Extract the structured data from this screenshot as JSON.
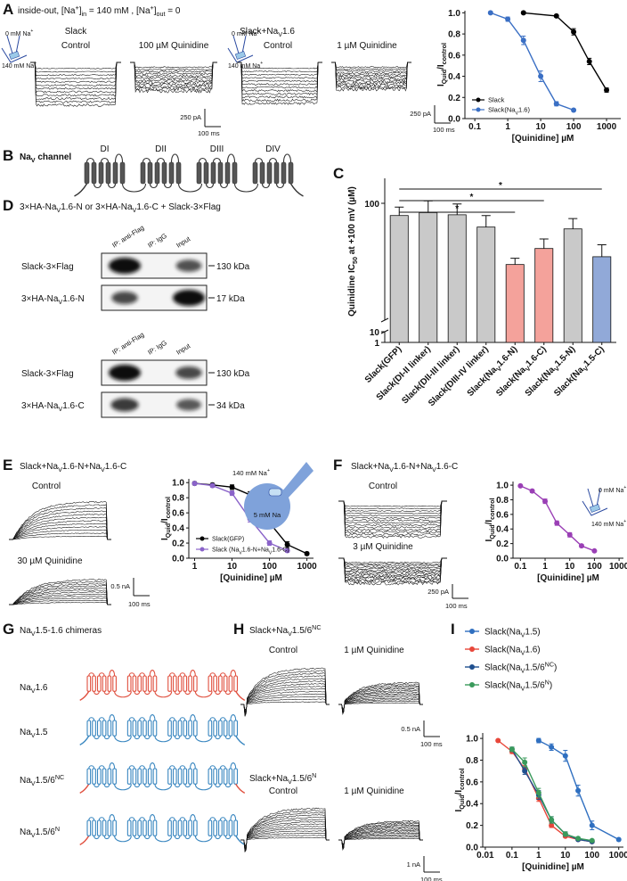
{
  "panels": {
    "a": {
      "label": "A",
      "title": "inside-out, [Na+]in = 140 mM , [Na+]out = 0",
      "slack": {
        "name": "Slack",
        "control": "Control",
        "drug": "100 µM Quinidine",
        "bath": "0 mM Na+",
        "pipette": "140 mM Na+",
        "scale_y": "250 pA",
        "scale_x": "100 ms"
      },
      "slack_nav": {
        "name": "Slack+NaV1.6",
        "control": "Control",
        "drug": "1 µM Quinidine",
        "bath": "0 mM Na+",
        "pipette": "140 mM Na+",
        "scale_y": "250 pA",
        "scale_x": "100 ms"
      }
    },
    "b": {
      "label": "B",
      "title": "NaV channel",
      "domains": [
        "DI",
        "DII",
        "DIII",
        "DIV"
      ]
    },
    "c": {
      "label": "C"
    },
    "d": {
      "label": "D",
      "title": "3×HA-NaV1.6-N or 3×HA-NaV1.6-C + Slack-3×Flag",
      "blots": [
        {
          "lanes": [
            "IP: anti-Flag",
            "IP: IgG",
            "Input"
          ],
          "rows": [
            {
              "name": "Slack-3×Flag",
              "size": "130 kDa"
            },
            {
              "name": "3×HA-NaV1.6-N",
              "size": "17 kDa"
            }
          ]
        },
        {
          "lanes": [
            "IP: anti-Flag",
            "IP: IgG",
            "Input"
          ],
          "rows": [
            {
              "name": "Slack-3×Flag",
              "size": "130 kDa"
            },
            {
              "name": "3×HA-NaV1.6-C",
              "size": "34 kDa"
            }
          ]
        }
      ]
    },
    "e": {
      "label": "E",
      "title": "Slack+NaV1.6-N+NaV1.6-C",
      "control": "Control",
      "drug": "30 µM Quinidine",
      "scale_y": "0.5 nA",
      "scale_x": "100 ms",
      "pipette": "140 mM Na+",
      "cell": "5 mM Na"
    },
    "f": {
      "label": "F",
      "title": "Slack+NaV1.6-N+NaV1.6-C",
      "control": "Control",
      "drug": "3 µM Quinidine",
      "scale_y": "250 pA",
      "scale_x": "100 ms",
      "bath": "0 mM Na+",
      "pipette": "140 mM Na+"
    },
    "g": {
      "label": "G",
      "title": "NaV1.5-1.6 chimeras",
      "rows": [
        "NaV1.6",
        "NaV1.5",
        "NaV1.5/6NC",
        "NaV1.5/6N"
      ]
    },
    "h": {
      "label": "H",
      "recordings": [
        {
          "title": "Slack+NaV1.5/6NC",
          "control": "Control",
          "drug": "1 µM Quinidine",
          "scale_y": "0.5 nA",
          "scale_x": "100 ms"
        },
        {
          "title": "Slack+NaV1.5/6N",
          "control": "Control",
          "drug": "1 µM Quinidine",
          "scale_y": "1 nA",
          "scale_x": "100 ms"
        }
      ]
    },
    "i": {
      "label": "I"
    }
  },
  "chart_data": [
    {
      "type": "line",
      "xlabel": "[Quinidine] µM",
      "ylabel": "IQuid/Icontrol",
      "xlog": true,
      "xlim": [
        0.05,
        2700
      ],
      "xticks": [
        0.1,
        1,
        10,
        100,
        1000
      ],
      "ylim": [
        0,
        1.02
      ],
      "yticks": [
        {
          "value": 0,
          "label": "0.0"
        },
        0.2,
        0.4,
        0.6,
        0.8,
        {
          "value": 1,
          "label": "1.0"
        }
      ],
      "legend": "lower left",
      "series": [
        {
          "name": "Slack",
          "color": "#000000",
          "x": [
            3,
            30,
            100,
            300,
            1000
          ],
          "values": [
            1.0,
            0.97,
            0.82,
            0.54,
            0.27
          ],
          "errors": [
            0.01,
            0.01,
            0.03,
            0.03,
            0.02
          ]
        },
        {
          "name": "Slack(NaV1.6)",
          "color": "#3a6fc4",
          "x": [
            0.3,
            1,
            3,
            10,
            30,
            100
          ],
          "values": [
            1.0,
            0.94,
            0.74,
            0.4,
            0.14,
            0.08
          ],
          "errors": [
            0.01,
            0.02,
            0.04,
            0.05,
            0.02,
            0.01
          ]
        }
      ]
    },
    {
      "type": "bar",
      "ylabel": "Quinidine IC50 at +100 mV (µM)",
      "ylog": true,
      "ylim": [
        1,
        150
      ],
      "yticks": [
        1,
        10,
        100
      ],
      "axis_break": [
        10,
        15
      ],
      "categories": [
        "Slack(GFP)",
        "Slack(DI-II linker)",
        "Slack(DII-III linker)",
        "Slack(DIII-IV linker)",
        "Slack(NaV1.6-N)",
        "Slack(NaV1.6-C)",
        "Slack(NaV1.5-N)",
        "Slack(NaV1.5-C)"
      ],
      "values": [
        82,
        86,
        83,
        68,
        37,
        48,
        66,
        42
      ],
      "errors": [
        12,
        18,
        16,
        14,
        4,
        8,
        12,
        9
      ],
      "colors": [
        "#c9c9c9",
        "#c9c9c9",
        "#c9c9c9",
        "#c9c9c9",
        "#f4a29b",
        "#f4a29b",
        "#c9c9c9",
        "#91a9d8"
      ],
      "significance": [
        {
          "from": 0,
          "to": 4,
          "label": "*"
        },
        {
          "from": 0,
          "to": 5,
          "label": "*"
        },
        {
          "from": 0,
          "to": 7,
          "label": "*"
        }
      ]
    },
    {
      "type": "line",
      "xlabel": "[Quinidine] µM",
      "ylabel": "IQuid/Icontrol",
      "xlog": true,
      "xlim": [
        0.7,
        1500
      ],
      "xticks": [
        1,
        10,
        100,
        1000
      ],
      "ylim": [
        0,
        1.05
      ],
      "yticks": [
        {
          "value": 0,
          "label": "0.0"
        },
        0.2,
        0.4,
        0.6,
        0.8,
        {
          "value": 1,
          "label": "1.0"
        }
      ],
      "legend": "lower left",
      "series": [
        {
          "name": "Slack(GFP)",
          "color": "#000000",
          "x": [
            1,
            3,
            10,
            30,
            100,
            300,
            1000
          ],
          "values": [
            0.99,
            0.97,
            0.94,
            0.84,
            0.47,
            0.18,
            0.06
          ],
          "errors": [
            0.02,
            0.02,
            0.03,
            0.04,
            0.05,
            0.04,
            0.02
          ]
        },
        {
          "name": "Slack (NaV1.6-N+NaV1.6-C)",
          "color": "#8a63c9",
          "x": [
            1,
            3,
            10,
            30,
            100,
            300
          ],
          "values": [
            0.99,
            0.96,
            0.86,
            0.52,
            0.2,
            0.1
          ],
          "errors": [
            0.01,
            0.02,
            0.03,
            0.04,
            0.03,
            0.02
          ]
        }
      ]
    },
    {
      "type": "line",
      "xlabel": "[Quinidine] µM",
      "ylabel": "IQuid/Icontrol",
      "xlog": true,
      "xlim": [
        0.05,
        1500
      ],
      "xticks": [
        0.1,
        1,
        10,
        100,
        1000
      ],
      "ylim": [
        0,
        1.05
      ],
      "yticks": [
        {
          "value": 0,
          "label": "0.0"
        },
        0.2,
        0.4,
        0.6,
        0.8,
        {
          "value": 1,
          "label": "1.0"
        }
      ],
      "legend": "none",
      "series": [
        {
          "name": "Slack+NaV1.6-N+NaV1.6-C",
          "color": "#9a3fb5",
          "x": [
            0.1,
            0.3,
            1,
            3,
            10,
            30,
            100
          ],
          "values": [
            0.99,
            0.92,
            0.78,
            0.48,
            0.32,
            0.17,
            0.1
          ],
          "errors": [
            0.01,
            0.02,
            0.03,
            0.03,
            0.03,
            0.02,
            0.01
          ]
        }
      ]
    },
    {
      "type": "line",
      "xlabel": "[Quinidine] µM",
      "ylabel": "IQuid/Icontrol",
      "xlog": true,
      "xlim": [
        0.008,
        1500
      ],
      "xticks": [
        0.01,
        0.1,
        1,
        10,
        100,
        1000
      ],
      "ylim": [
        0,
        1.05
      ],
      "yticks": [
        {
          "value": 0,
          "label": "0.0"
        },
        0.2,
        0.4,
        0.6,
        0.8,
        {
          "value": 1,
          "label": "1.0"
        }
      ],
      "legend": "above",
      "series": [
        {
          "name": "Slack(NaV1.5)",
          "color": "#2f6fc0",
          "x": [
            1,
            3,
            10,
            30,
            100,
            1000
          ],
          "values": [
            0.98,
            0.92,
            0.84,
            0.52,
            0.2,
            0.07
          ],
          "errors": [
            0.02,
            0.03,
            0.05,
            0.05,
            0.04,
            0.01
          ]
        },
        {
          "name": "Slack(NaV1.6)",
          "color": "#e8473a",
          "x": [
            0.03,
            0.1,
            0.3,
            1,
            3,
            10,
            30,
            100
          ],
          "values": [
            0.98,
            0.88,
            0.72,
            0.45,
            0.2,
            0.1,
            0.07,
            0.05
          ],
          "errors": [
            0.01,
            0.02,
            0.03,
            0.03,
            0.02,
            0.01,
            0.01,
            0.01
          ]
        },
        {
          "name": "Slack(NaV1.5/6NC)",
          "color": "#1f4f8f",
          "x": [
            0.1,
            0.3,
            1,
            3,
            10,
            30,
            100
          ],
          "values": [
            0.9,
            0.7,
            0.48,
            0.25,
            0.12,
            0.07,
            0.05
          ],
          "errors": [
            0.02,
            0.03,
            0.04,
            0.03,
            0.02,
            0.01,
            0.01
          ]
        },
        {
          "name": "Slack(NaV1.5/6N)",
          "color": "#3a9a5b",
          "x": [
            0.1,
            0.3,
            1,
            3,
            10,
            30,
            100
          ],
          "values": [
            0.9,
            0.78,
            0.5,
            0.25,
            0.12,
            0.08,
            0.06
          ],
          "errors": [
            0.02,
            0.04,
            0.04,
            0.03,
            0.02,
            0.01,
            0.01
          ]
        }
      ]
    }
  ]
}
